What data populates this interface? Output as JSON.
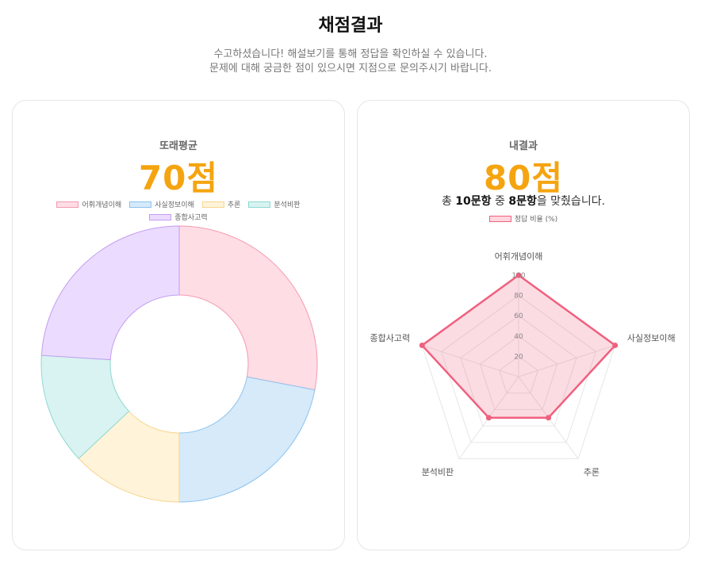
{
  "header": {
    "title": "채점결과",
    "subtitle_line1": "수고하셨습니다! 해설보기를 통해 정답을 확인하실 수 있습니다.",
    "subtitle_line2": "문제에 대해 궁금한 점이 있으시면 지점으로 문의주시기 바랍니다."
  },
  "left_card": {
    "label": "또래평균",
    "score": "70점"
  },
  "right_card": {
    "label": "내결과",
    "score": "80점",
    "result_prefix": "총 ",
    "total_questions": "10문항",
    "result_mid": " 중 ",
    "correct_questions": "8문항",
    "result_suffix": "을 맞췄습니다."
  },
  "colors": {
    "accent": "#f5a410",
    "radar_line": "#f0607f"
  },
  "chart_data": [
    {
      "type": "doughnut",
      "categories": [
        "어휘개념이해",
        "사실정보이해",
        "추론",
        "분석비판",
        "종합사고력"
      ],
      "values": [
        28,
        22,
        13,
        13,
        24
      ],
      "colors": {
        "fill": [
          "#ffdde5",
          "#d6eafa",
          "#fff3d9",
          "#d8f3f1",
          "#ebdcff"
        ],
        "border": [
          "#f39ab0",
          "#8cc2ee",
          "#f5d68d",
          "#8fd8d2",
          "#c49cf2"
        ]
      },
      "legend": "top",
      "title": ""
    },
    {
      "type": "radar",
      "categories": [
        "어휘개념이해",
        "사실정보이해",
        "추론",
        "분석비판",
        "종합사고력"
      ],
      "series": [
        {
          "name": "정답 비율 (%)",
          "values": [
            100,
            100,
            50,
            50,
            100
          ]
        }
      ],
      "r_ticks": [
        "20",
        "40",
        "60",
        "80",
        "100"
      ],
      "r_range": [
        0,
        100
      ],
      "legend": "top"
    }
  ]
}
